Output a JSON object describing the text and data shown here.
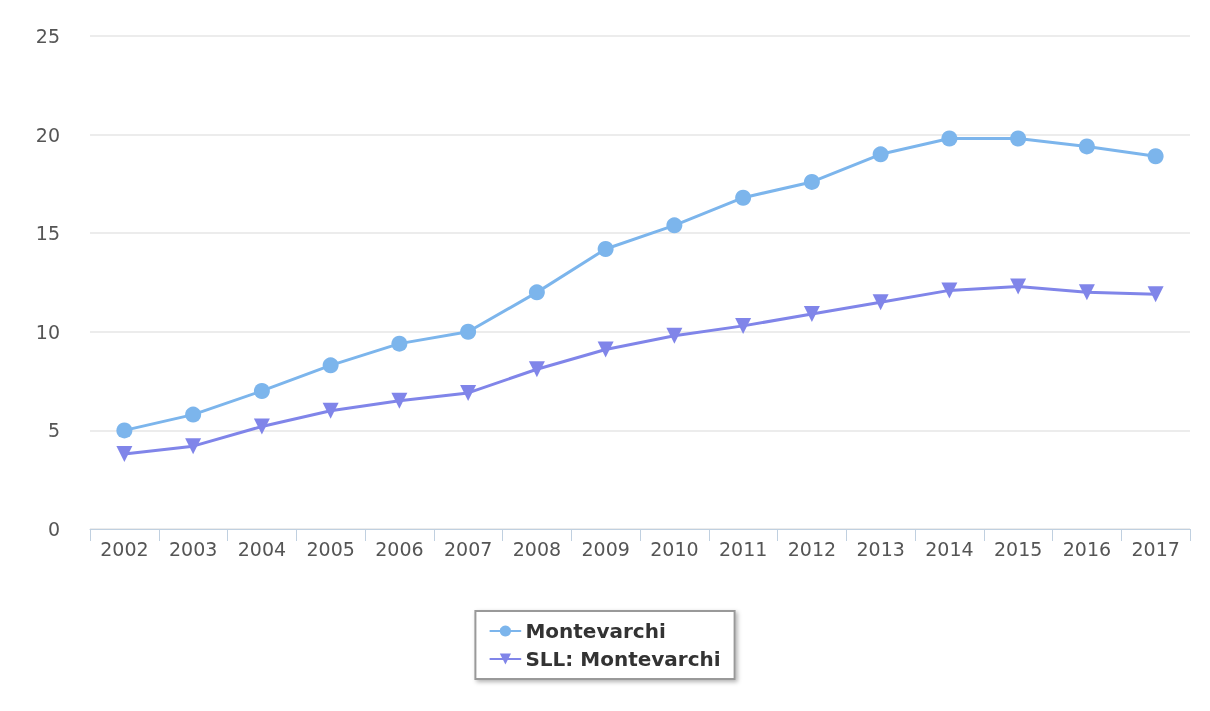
{
  "chart_data": {
    "type": "line",
    "categories": [
      "2002",
      "2003",
      "2004",
      "2005",
      "2006",
      "2007",
      "2008",
      "2009",
      "2010",
      "2011",
      "2012",
      "2013",
      "2014",
      "2015",
      "2016",
      "2017"
    ],
    "series": [
      {
        "name": "Montevarchi",
        "color": "#7cb5ec",
        "marker": "circle",
        "values": [
          5.0,
          5.8,
          7.0,
          8.3,
          9.4,
          10.0,
          12.0,
          14.2,
          15.4,
          16.8,
          17.6,
          19.0,
          19.8,
          19.8,
          19.4,
          18.9
        ]
      },
      {
        "name": "SLL: Montevarchi",
        "color": "#8085e9",
        "marker": "triangle",
        "values": [
          3.8,
          4.2,
          5.2,
          6.0,
          6.5,
          6.9,
          8.1,
          9.1,
          9.8,
          10.3,
          10.9,
          11.5,
          12.1,
          12.3,
          12.0,
          11.9
        ]
      }
    ],
    "ylim": [
      0,
      25
    ],
    "yticks": [
      0,
      5,
      10,
      15,
      20,
      25
    ],
    "grid": "y",
    "legend": "bottom",
    "line_style": "solid"
  }
}
